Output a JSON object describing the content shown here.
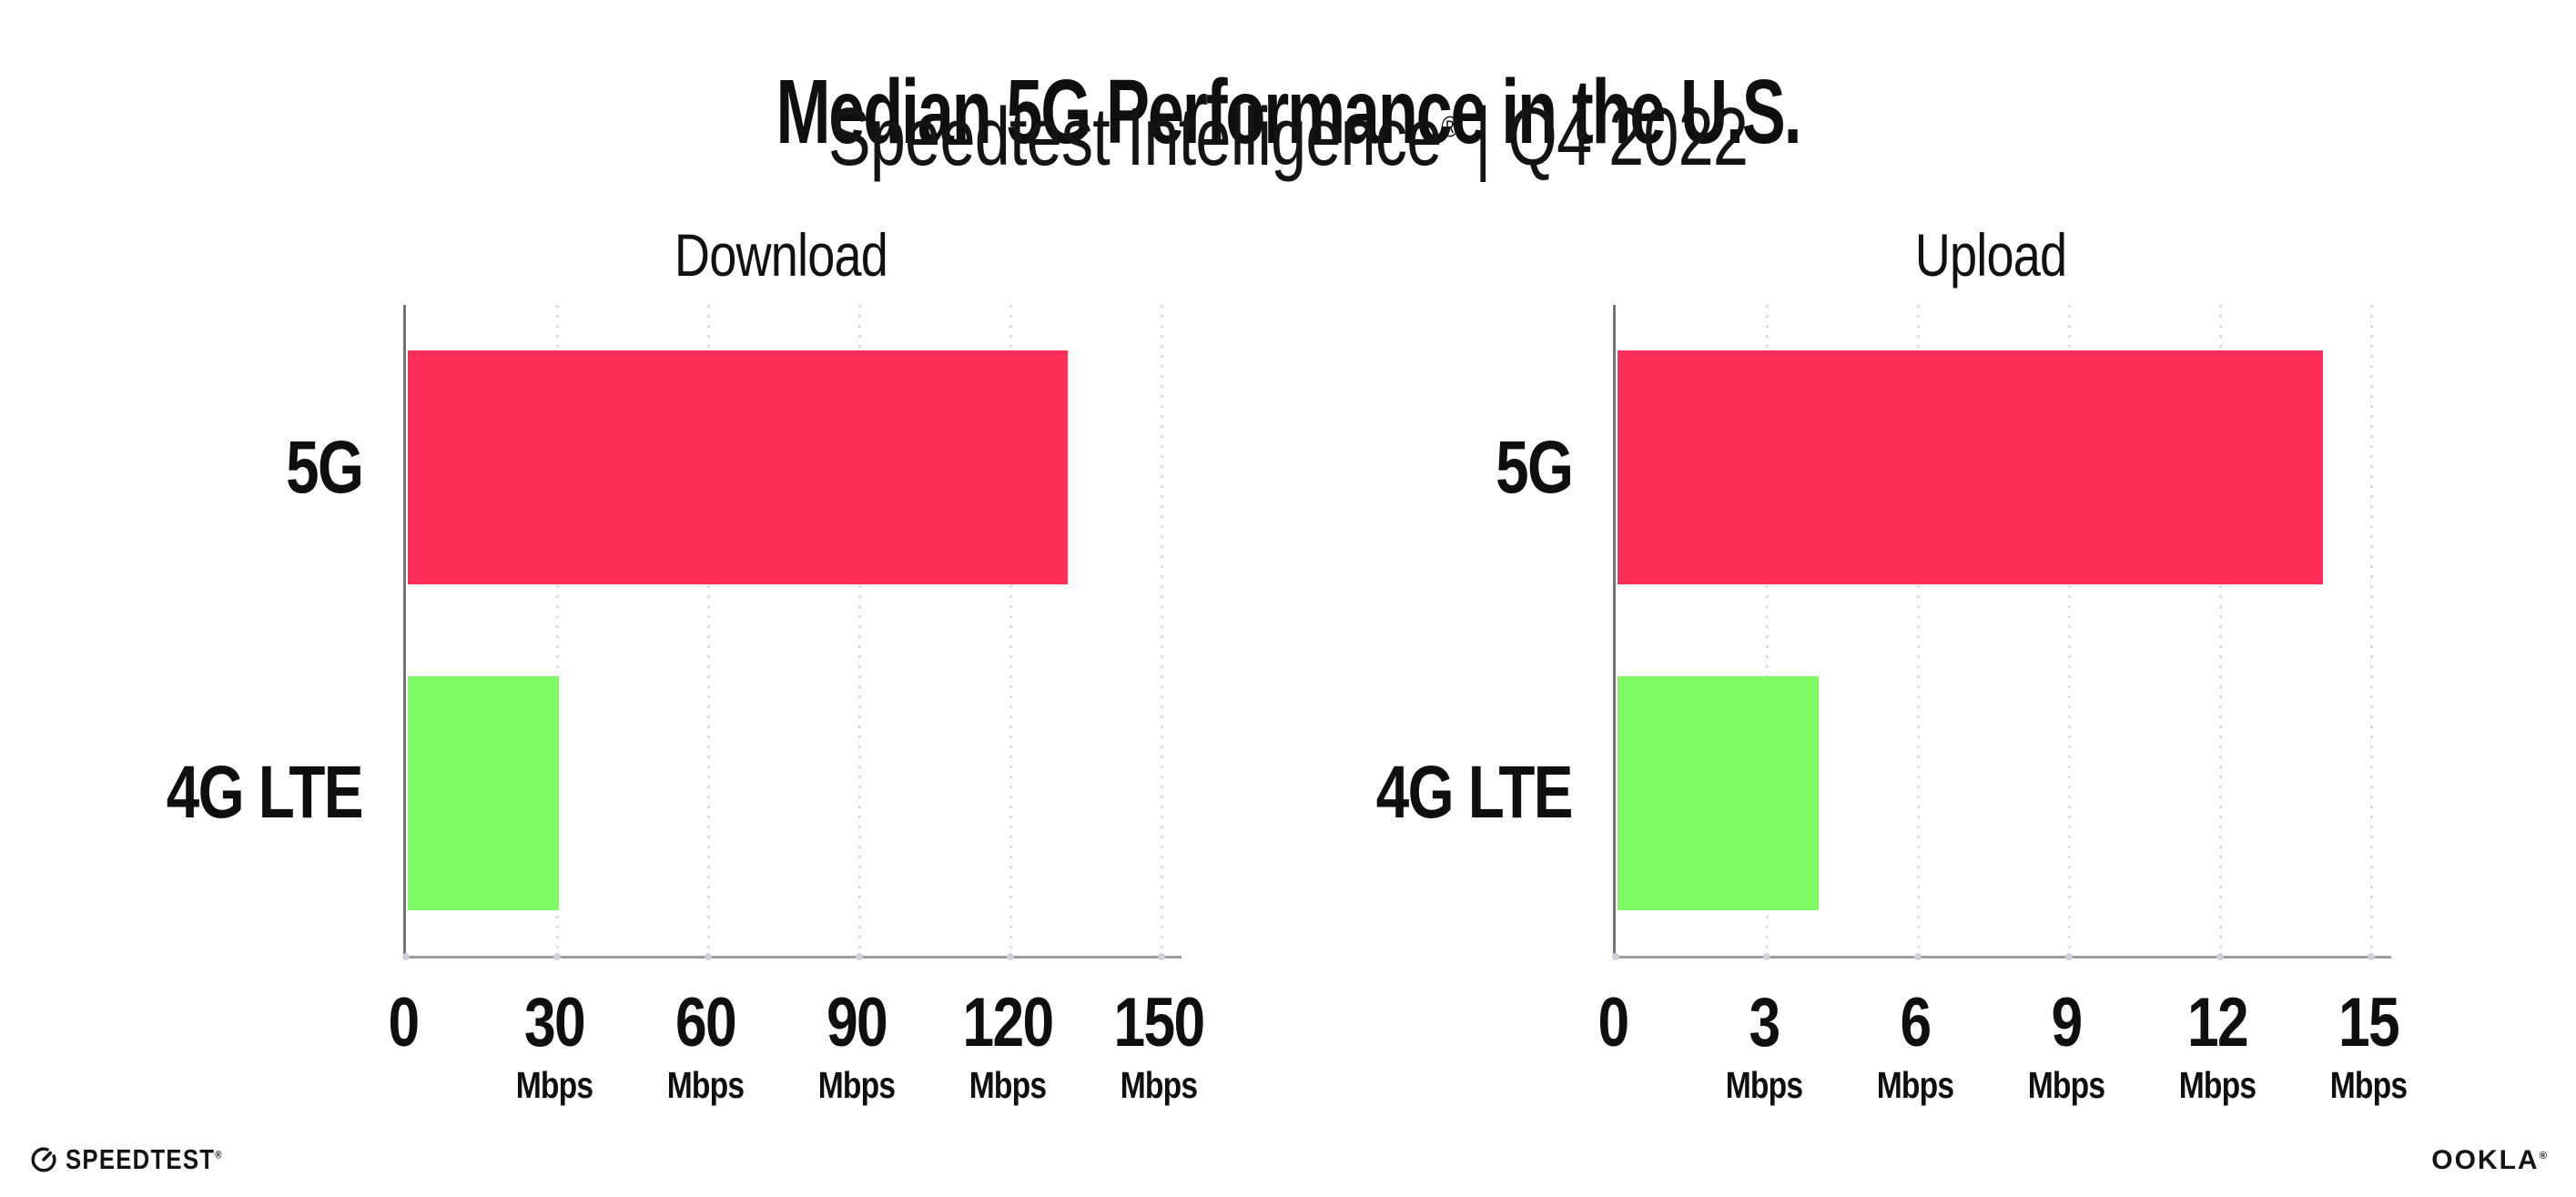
{
  "header": {
    "title": "Median 5G Performance in the U.S.",
    "subtitle_brand": "Speedtest Intelligence",
    "subtitle_reg": "®",
    "subtitle_rest": " | Q4 2022"
  },
  "chart_data": [
    {
      "type": "bar",
      "orientation": "horizontal",
      "title": "Download",
      "categories": [
        "5G",
        "4G LTE"
      ],
      "values": [
        131,
        30
      ],
      "unit": "Mbps",
      "xlim": [
        0,
        150
      ],
      "xticks": [
        0,
        30,
        60,
        90,
        120,
        150
      ],
      "tick_unit": "Mbps",
      "bar_colors": [
        "#fd2e58",
        "#7efa64"
      ],
      "grid": "dotted-vertical-at-ticks",
      "legend": "none"
    },
    {
      "type": "bar",
      "orientation": "horizontal",
      "title": "Upload",
      "categories": [
        "5G",
        "4G LTE"
      ],
      "values": [
        14,
        4
      ],
      "unit": "Mbps",
      "xlim": [
        0,
        15
      ],
      "xticks": [
        0,
        3,
        6,
        9,
        12,
        15
      ],
      "tick_unit": "Mbps",
      "bar_colors": [
        "#fd2e58",
        "#7efa64"
      ],
      "grid": "dotted-vertical-at-ticks",
      "legend": "none"
    }
  ],
  "footer": {
    "speedtest_label": "SPEEDTEST",
    "speedtest_mark": "®",
    "ookla_label": "OOKLA",
    "ookla_mark": "®"
  },
  "colors": {
    "bar_5g": "#fd2e58",
    "bar_4g_lte": "#7efa64",
    "axis_left": "#757575",
    "axis_bottom": "#9c9c9c",
    "grid_dot": "#dcdce6",
    "text": "#141414"
  }
}
